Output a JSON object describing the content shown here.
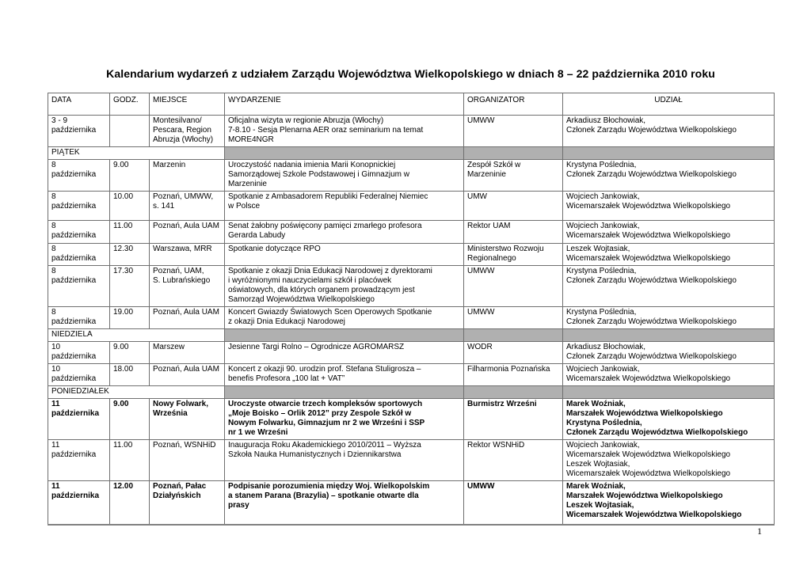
{
  "title": "Kalendarium wydarzeń z udziałem Zarządu Województwa Wielkopolskiego w dniach 8 – 22 października 2010 roku",
  "page_number": "1",
  "colors": {
    "section_fill": "#b0b0b0"
  },
  "table": {
    "headers": {
      "date": "DATA",
      "time": "GODZ.",
      "place": "MIEJSCE",
      "event": "WYDARZENIE",
      "organizer": "ORGANIZATOR",
      "participation": "UDZIAŁ"
    },
    "rows": [
      {
        "kind": "event",
        "date": "3 - 9\npaździernika",
        "time": "",
        "place": "Montesilvano/\nPescara, Region\nAbruzja (Włochy)",
        "event": "Oficjalna wizyta w regionie Abruzja (Włochy)\n7-8.10 - Sesja Plenarna AER oraz seminarium na temat\nMORE4NGR",
        "organizer": "UMWW",
        "participation": "Arkadiusz Błochowiak,\nCzłonek Zarządu Województwa Wielkopolskiego"
      },
      {
        "kind": "section",
        "label": "PIĄTEK"
      },
      {
        "kind": "event",
        "date": "8\npaździernika",
        "time": "9.00",
        "place": "Marzenin",
        "event": "Uroczystość nadania imienia Marii Konopnickiej\nSamorządowej Szkole Podstawowej i Gimnazjum w\nMarzeninie",
        "organizer": "Zespół  Szkół w\nMarzeninie",
        "participation": "Krystyna Poślednia,\nCzłonek Zarządu Województwa Wielkopolskiego"
      },
      {
        "kind": "event",
        "date": "8\npaździernika",
        "time": "10.00",
        "place": "Poznań, UMWW,\ns. 141",
        "event": "Spotkanie z Ambasadorem Republiki Federalnej Niemiec\nw Polsce",
        "organizer": "UMW",
        "participation": "Wojciech Jankowiak,\nWicemarszałek Województwa Wielkopolskiego"
      },
      {
        "kind": "event",
        "date": "8\npaździernika",
        "time": "11.00",
        "place": "Poznań, Aula UAM",
        "event": "Senat żałobny poświęcony pamięci zmarłego profesora\nGerarda Labudy",
        "organizer": "Rektor UAM",
        "participation": "Wojciech Jankowiak,\nWicemarszałek Województwa Wielkopolskiego"
      },
      {
        "kind": "event",
        "date": "8\npaździernika",
        "time": "12.30",
        "place": "Warszawa, MRR",
        "event": "Spotkanie dotyczące RPO",
        "organizer": "Ministerstwo Rozwoju\nRegionalnego",
        "org_small": true,
        "participation": "Leszek Wojtasiak,\nWicemarszałek Województwa Wielkopolskiego"
      },
      {
        "kind": "event",
        "date": "8\npaździernika",
        "time": "17.30",
        "place": "Poznań, UAM,\nS. Lubrańskiego",
        "event": "Spotkanie z okazji Dnia Edukacji Narodowej z dyrektorami\ni wyróżnionymi nauczycielami szkół i placówek\noświatowych, dla których organem prowadzącym jest\nSamorząd Województwa Wielkopolskiego",
        "organizer": "UMWW",
        "participation": "Krystyna Poślednia,\nCzłonek Zarządu Województwa Wielkopolskiego"
      },
      {
        "kind": "event",
        "date": "8\npaździernika",
        "time": "19.00",
        "place": "Poznań, Aula UAM",
        "event": "Koncert Gwiazdy Światowych Scen Operowych Spotkanie\nz okazji Dnia Edukacji Narodowej",
        "organizer": "UMWW",
        "participation": "Krystyna Poślednia,\nCzłonek Zarządu Województwa Wielkopolskiego"
      },
      {
        "kind": "section",
        "label": "NIEDZIELA"
      },
      {
        "kind": "event",
        "date": "10\npaździernika",
        "time": "9.00",
        "place": "Marszew",
        "event": "Jesienne Targi Rolno – Ogrodnicze AGROMARSZ",
        "organizer": "WODR",
        "participation": "Arkadiusz Błochowiak,\nCzłonek Zarządu Województwa Wielkopolskiego"
      },
      {
        "kind": "event",
        "date": "10\npaździernika",
        "time": "18.00",
        "place": "Poznań, Aula UAM",
        "event": "Koncert z okazji 90. urodzin prof. Stefana Stuligrosza –\nbenefis Profesora „100 lat + VAT”",
        "organizer": "Filharmonia Poznańska",
        "participation": "Wojciech Jankowiak,\nWicemarszałek Województwa Wielkopolskiego"
      },
      {
        "kind": "section",
        "label": "PONIEDZIAŁEK"
      },
      {
        "kind": "event",
        "bold": true,
        "date": "11\npaździernika",
        "time": "9.00",
        "place": "Nowy Folwark,\nWrześnia",
        "event": "Uroczyste otwarcie trzech kompleksów sportowych\n„Moje Boisko – Orlik 2012” przy Zespole Szkół w\nNowym Folwarku, Gimnazjum nr 2 we Wrześni i SSP\nnr 1 we Wrześni",
        "organizer": "Burmistrz Wrześni",
        "participation": "Marek Woźniak,\nMarszałek Województwa Wielkopolskiego\nKrystyna Poślednia,\nCzłonek Zarządu Województwa Wielkopolskiego"
      },
      {
        "kind": "event",
        "date": "11\npaździernika",
        "time": "11.00",
        "place": "Poznań, WSNHiD",
        "event": "Inauguracja Roku Akademickiego 2010/2011 – Wyższa\nSzkoła Nauka Humanistycznych i Dziennikarstwa",
        "organizer": "Rektor WSNHiD",
        "participation": "Wojciech Jankowiak,\nWicemarszałek Województwa Wielkopolskiego\nLeszek Wojtasiak,\nWicemarszałek Województwa Wielkopolskiego"
      },
      {
        "kind": "event",
        "bold": true,
        "date": "11\npaździernika",
        "time": "12.00",
        "place": "Poznań, Pałac\nDziałyńskich",
        "event": "Podpisanie porozumienia między Woj. Wielkopolskim\na stanem Parana (Brazylia) – spotkanie otwarte dla\nprasy",
        "organizer": "UMWW",
        "participation": "Marek Woźniak,\nMarszałek Województwa Wielkopolskiego\nLeszek Wojtasiak,\nWicemarszałek Województwa Wielkopolskiego"
      }
    ]
  }
}
